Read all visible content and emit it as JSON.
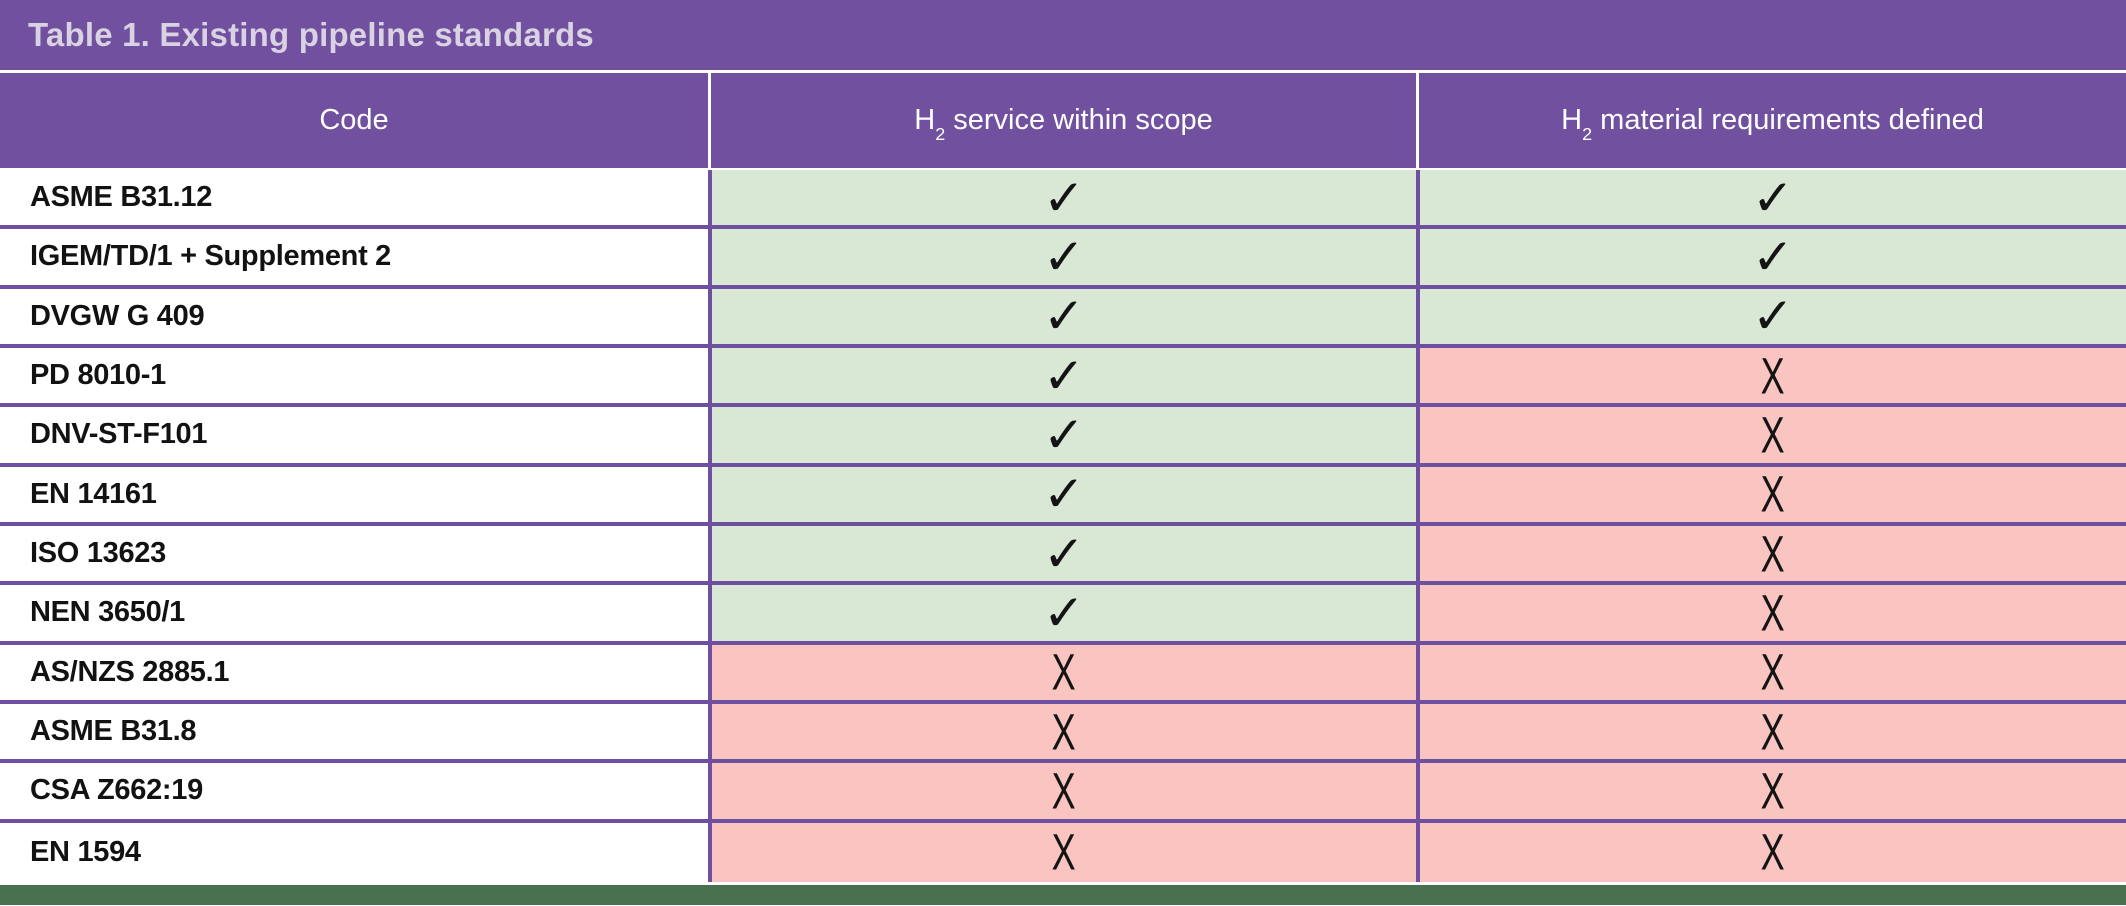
{
  "title": "Table 1. Existing pipeline standards",
  "columns": {
    "code": "Code",
    "service": {
      "base": "H",
      "sub": "2",
      "rest": " service within scope"
    },
    "material": {
      "base": "H",
      "sub": "2",
      "rest": " material requirements defined"
    }
  },
  "symbols": {
    "check": "✓",
    "cross": "X"
  },
  "colors": {
    "header_purple": "#71509F",
    "grid_purple": "#6F4F9F",
    "yes_green": "#D8E8D4",
    "no_pink": "#FAC4C1",
    "footer_green": "#49704E",
    "title_text": "#D9D2E2",
    "header_text": "#FFFFFF",
    "body_text": "#121212"
  },
  "rows": [
    {
      "code": "ASME B31.12",
      "service": true,
      "material": true
    },
    {
      "code": "IGEM/TD/1 + Supplement 2",
      "service": true,
      "material": true
    },
    {
      "code": "DVGW G 409",
      "service": true,
      "material": true
    },
    {
      "code": "PD 8010-1",
      "service": true,
      "material": false
    },
    {
      "code": "DNV-ST-F101",
      "service": true,
      "material": false
    },
    {
      "code": "EN 14161",
      "service": true,
      "material": false
    },
    {
      "code": "ISO 13623",
      "service": true,
      "material": false
    },
    {
      "code": "NEN 3650/1",
      "service": true,
      "material": false
    },
    {
      "code": "AS/NZS 2885.1",
      "service": false,
      "material": false
    },
    {
      "code": "ASME B31.8",
      "service": false,
      "material": false
    },
    {
      "code": "CSA Z662:19",
      "service": false,
      "material": false
    },
    {
      "code": "EN 1594",
      "service": false,
      "material": false
    }
  ]
}
